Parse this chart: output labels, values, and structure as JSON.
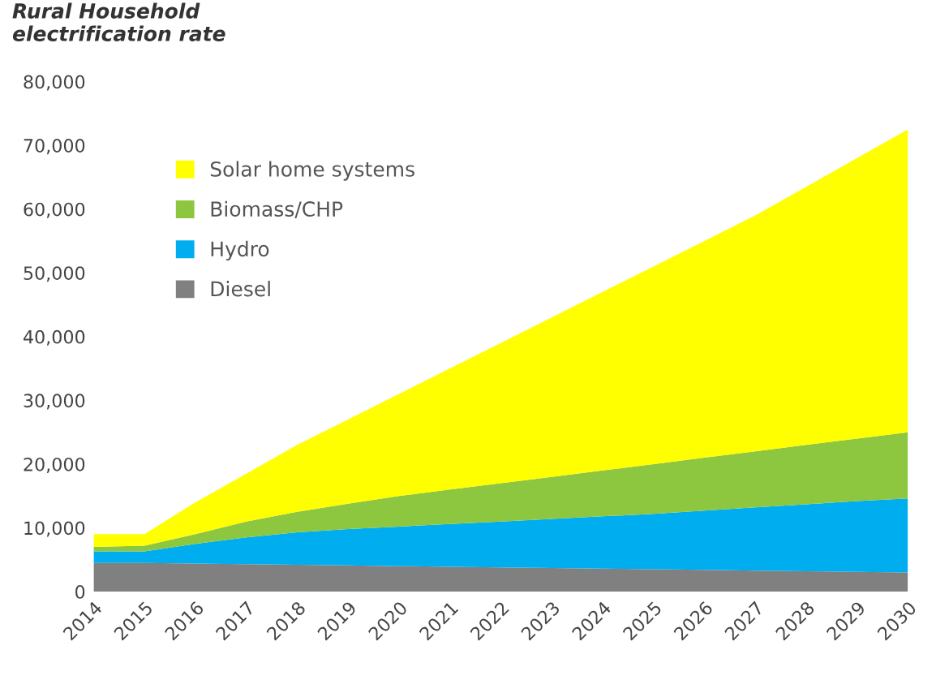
{
  "chart_data": {
    "type": "area",
    "stacked": true,
    "title": "Rural Household\nelectrification rate",
    "categories": [
      "2014",
      "2015",
      "2016",
      "2017",
      "2018",
      "2019",
      "2020",
      "2021",
      "2022",
      "2023",
      "2024",
      "2025",
      "2026",
      "2027",
      "2028",
      "2029",
      "2030"
    ],
    "series": [
      {
        "name": "Diesel",
        "color": "#808080",
        "values": [
          4500,
          4500,
          4400,
          4300,
          4200,
          4100,
          4000,
          3900,
          3800,
          3700,
          3600,
          3500,
          3400,
          3300,
          3200,
          3100,
          3000
        ]
      },
      {
        "name": "Hydro",
        "color": "#00aeef",
        "values": [
          1800,
          1800,
          3100,
          4200,
          5100,
          5700,
          6200,
          6700,
          7200,
          7700,
          8200,
          8700,
          9300,
          9900,
          10500,
          11100,
          11600
        ]
      },
      {
        "name": "Biomass/CHP",
        "color": "#8dc63f",
        "values": [
          700,
          900,
          1500,
          2500,
          3200,
          4000,
          4800,
          5400,
          6000,
          6600,
          7200,
          7800,
          8300,
          8800,
          9300,
          9800,
          10400
        ]
      },
      {
        "name": "Solar home systems",
        "color": "#ffff00",
        "values": [
          2000,
          1800,
          5000,
          7500,
          10500,
          13200,
          16000,
          19000,
          22000,
          25000,
          28000,
          31000,
          34000,
          37000,
          40500,
          44000,
          47500
        ]
      }
    ],
    "ylim": [
      0,
      80000
    ],
    "yticks": [
      0,
      {
        "value": 10000,
        "label": "10,000"
      },
      {
        "value": 20000,
        "label": "20,000"
      },
      {
        "value": 30000,
        "label": "30,000"
      },
      {
        "value": 40000,
        "label": "40,000"
      },
      {
        "value": 50000,
        "label": "50,000"
      },
      {
        "value": 60000,
        "label": "60,000"
      },
      {
        "value": 70000,
        "label": "70,000"
      },
      {
        "value": 80000,
        "label": "80,000"
      }
    ],
    "grid": false,
    "legend": "top left"
  }
}
